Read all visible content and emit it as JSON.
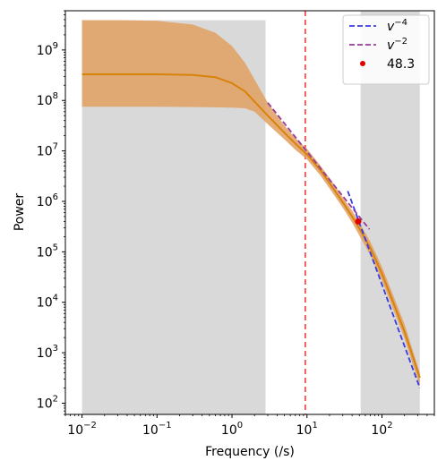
{
  "chart_data": {
    "type": "line",
    "xlabel": "Frequency (/s)",
    "ylabel": "Power",
    "xscale": "log",
    "yscale": "log",
    "xlim": [
      0.006,
      500
    ],
    "ylim": [
      60,
      6000000000
    ],
    "grid": false,
    "legend_position": "top-right",
    "x_ticks": [
      {
        "base": "10",
        "exp": "−2",
        "value": 0.01
      },
      {
        "base": "10",
        "exp": "−1",
        "value": 0.1
      },
      {
        "base": "10",
        "exp": "0",
        "value": 1
      },
      {
        "base": "10",
        "exp": "1",
        "value": 10
      },
      {
        "base": "10",
        "exp": "2",
        "value": 100
      }
    ],
    "y_ticks": [
      {
        "base": "10",
        "exp": "2",
        "value": 100
      },
      {
        "base": "10",
        "exp": "3",
        "value": 1000
      },
      {
        "base": "10",
        "exp": "4",
        "value": 10000
      },
      {
        "base": "10",
        "exp": "5",
        "value": 100000
      },
      {
        "base": "10",
        "exp": "6",
        "value": 1000000
      },
      {
        "base": "10",
        "exp": "7",
        "value": 10000000
      },
      {
        "base": "10",
        "exp": "8",
        "value": 100000000
      },
      {
        "base": "10",
        "exp": "9",
        "value": 1000000000
      }
    ],
    "shaded_regions": [
      {
        "x": [
          0.01,
          2.8
        ],
        "y": [
          60,
          3900000000
        ],
        "color": "#d9d9d9"
      },
      {
        "x": [
          52,
          320
        ],
        "y": [
          60,
          6000000000
        ],
        "color": "#d9d9d9"
      }
    ],
    "vertical_line": {
      "x": 9.5,
      "color": "#f05050",
      "style": "dashed"
    },
    "fit_line": {
      "color": "#d9820a",
      "x": [
        0.01,
        0.03,
        0.1,
        0.3,
        0.6,
        1.0,
        1.5,
        2.0,
        3.0,
        5.0,
        7.0,
        10.0,
        15.0,
        20.0,
        30.0,
        40.0,
        50.0,
        70.0,
        100.0,
        150.0,
        200.0,
        320.0
      ],
      "y": [
        330000000,
        330000000,
        330000000,
        320000000,
        290000000,
        220000000,
        150000000,
        95000000,
        50000000,
        23000000,
        14000000,
        8500000,
        4200000,
        2300000,
        960000,
        500000,
        290000,
        120000,
        37000,
        8000,
        2600,
        320
      ]
    },
    "confidence_band": {
      "color": "#e0a060",
      "x": [
        0.01,
        0.03,
        0.1,
        0.3,
        0.6,
        1.0,
        1.5,
        2.0,
        3.0,
        5.0,
        7.0,
        10.0,
        15.0,
        20.0,
        30.0,
        40.0,
        50.0,
        70.0,
        100.0,
        150.0,
        200.0,
        320.0
      ],
      "upper": [
        3900000000,
        3900000000,
        3800000000,
        3200000000,
        2200000000,
        1200000000,
        550000000,
        260000000,
        90000000,
        32000000,
        18000000,
        11000000,
        5200000,
        2900000,
        1200000,
        650000,
        380000,
        160000,
        50000,
        11000,
        3700,
        400
      ],
      "lower": [
        75000000,
        75000000,
        75000000,
        74000000,
        73000000,
        72000000,
        70000000,
        60000000,
        34000000,
        17000000,
        10500000,
        6800000,
        3300000,
        1800000,
        750000,
        380000,
        210000,
        85000,
        27000,
        5800,
        1900,
        220
      ]
    },
    "series": [
      {
        "name": "v^{-4}",
        "label_base": "v",
        "label_exp": "−4",
        "color": "#3a3ae0",
        "style": "dashed",
        "x": [
          35,
          320
        ],
        "y": [
          1600000,
          200
        ]
      },
      {
        "name": "v^{-2}",
        "label_base": "v",
        "label_exp": "−2",
        "color": "#9a3a9a",
        "style": "dashed",
        "x": [
          3,
          68
        ],
        "y": [
          90000000,
          280000
        ]
      }
    ],
    "points": [
      {
        "name": "48.3",
        "x": 48.3,
        "y": 400000,
        "color": "#e00000"
      }
    ]
  }
}
